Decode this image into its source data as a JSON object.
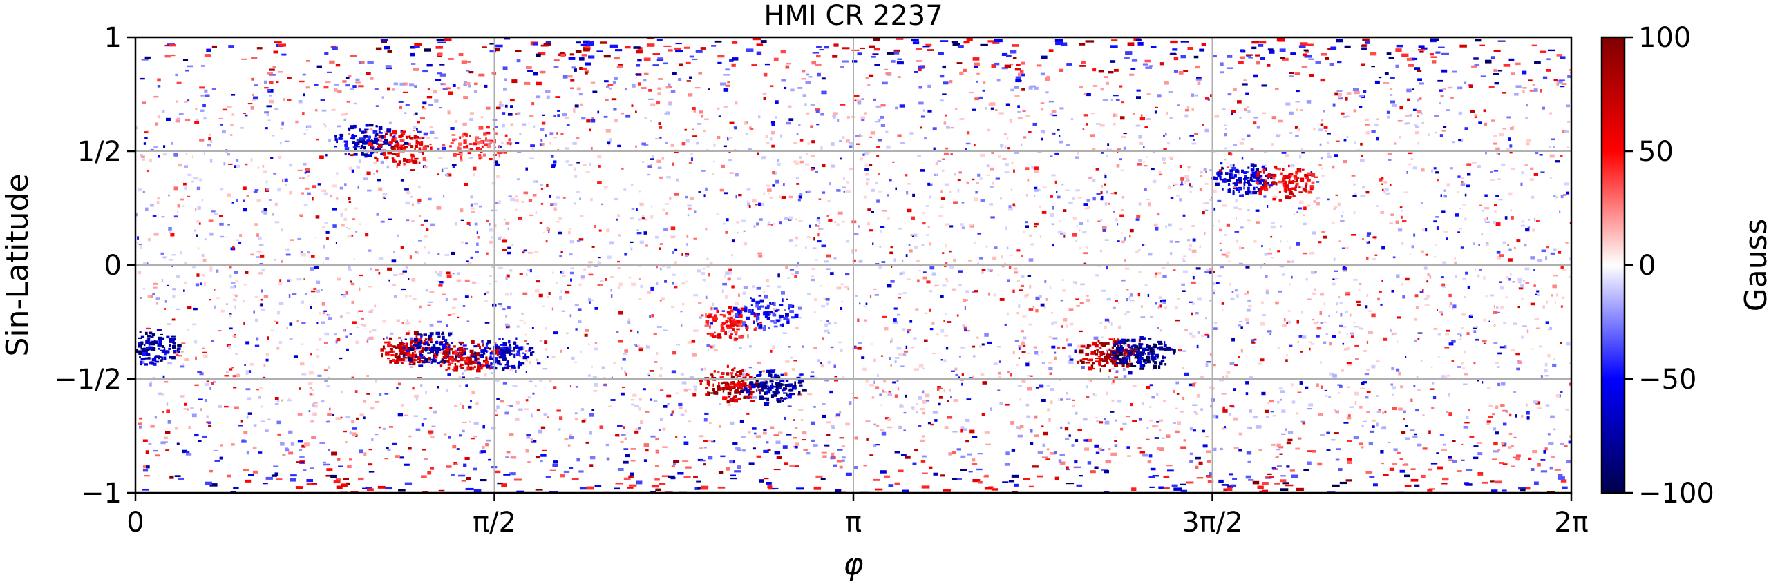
{
  "chart_data": {
    "type": "heatmap",
    "title": "HMI CR 2237",
    "xlabel": "φ",
    "ylabel": "Sin-Latitude",
    "xlim": [
      0,
      6.2832
    ],
    "ylim": [
      -1,
      1
    ],
    "x_ticks": [
      {
        "value": 0,
        "label": "0"
      },
      {
        "value": 1.5708,
        "label": "π/2"
      },
      {
        "value": 3.1416,
        "label": "π"
      },
      {
        "value": 4.7124,
        "label": "3π/2"
      },
      {
        "value": 6.2832,
        "label": "2π"
      }
    ],
    "y_ticks": [
      {
        "value": 1,
        "label": "1"
      },
      {
        "value": 0.5,
        "label": "1/2"
      },
      {
        "value": 0,
        "label": "0"
      },
      {
        "value": -0.5,
        "label": "−1/2"
      },
      {
        "value": -1,
        "label": "−1"
      }
    ],
    "grid": true,
    "colorbar": {
      "label": "Gauss",
      "min": -100,
      "max": 100,
      "ticks": [
        {
          "value": 100,
          "label": "100"
        },
        {
          "value": 50,
          "label": "50"
        },
        {
          "value": 0,
          "label": "0"
        },
        {
          "value": -50,
          "label": "−50"
        },
        {
          "value": -100,
          "label": "−100"
        }
      ],
      "colormap": "seismic",
      "colors": [
        "#00004c",
        "#0000ff",
        "#ffffff",
        "#ff0000",
        "#800000"
      ]
    },
    "active_regions": [
      {
        "phi": 0.05,
        "sinlat": -0.36,
        "polarity": "negative",
        "strength": 90
      },
      {
        "phi": 1.0,
        "sinlat": 0.55,
        "polarity": "negative",
        "strength": 80
      },
      {
        "phi": 1.15,
        "sinlat": 0.52,
        "polarity": "positive",
        "strength": 70
      },
      {
        "phi": 1.5,
        "sinlat": 0.54,
        "polarity": "positive",
        "strength": 50
      },
      {
        "phi": 1.2,
        "sinlat": -0.36,
        "polarity": "positive",
        "strength": 90
      },
      {
        "phi": 1.3,
        "sinlat": -0.36,
        "polarity": "negative",
        "strength": 90
      },
      {
        "phi": 1.45,
        "sinlat": -0.4,
        "polarity": "positive",
        "strength": 80
      },
      {
        "phi": 1.6,
        "sinlat": -0.38,
        "polarity": "negative",
        "strength": 80
      },
      {
        "phi": 2.6,
        "sinlat": -0.25,
        "polarity": "positive",
        "strength": 60
      },
      {
        "phi": 2.75,
        "sinlat": -0.2,
        "polarity": "negative",
        "strength": 60
      },
      {
        "phi": 2.6,
        "sinlat": -0.52,
        "polarity": "positive",
        "strength": 90
      },
      {
        "phi": 2.78,
        "sinlat": -0.53,
        "polarity": "negative",
        "strength": 95
      },
      {
        "phi": 4.25,
        "sinlat": -0.39,
        "polarity": "positive",
        "strength": 100
      },
      {
        "phi": 4.4,
        "sinlat": -0.38,
        "polarity": "negative",
        "strength": 100
      },
      {
        "phi": 4.85,
        "sinlat": 0.38,
        "polarity": "negative",
        "strength": 80
      },
      {
        "phi": 5.02,
        "sinlat": 0.37,
        "polarity": "positive",
        "strength": 70
      }
    ]
  }
}
